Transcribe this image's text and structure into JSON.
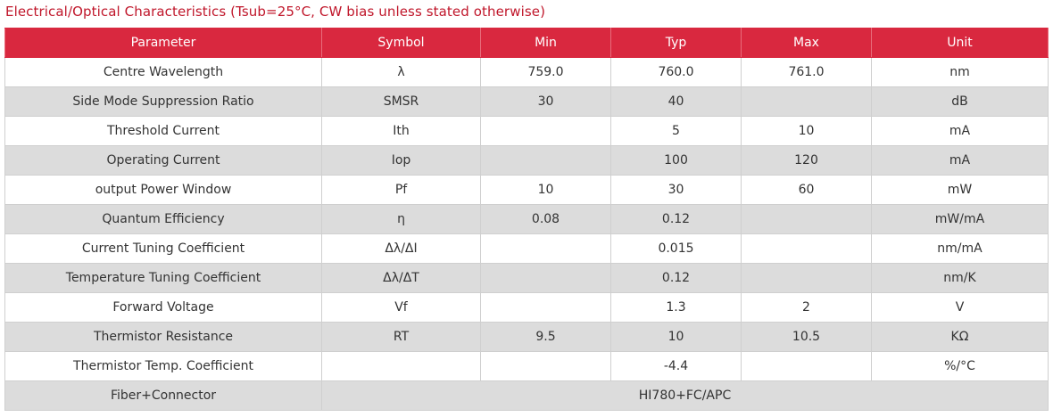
{
  "title": "Electrical/Optical Characteristics (Tsub=25°C, CW bias unless stated otherwise)",
  "columns": [
    "Parameter",
    "Symbol",
    "Min",
    "Typ",
    "Max",
    "Unit"
  ],
  "rows": [
    {
      "parameter": "Centre Wavelength",
      "symbol": "λ",
      "min": "759.0",
      "typ": "760.0",
      "max": "761.0",
      "unit": "nm"
    },
    {
      "parameter": "Side Mode Suppression Ratio",
      "symbol": "SMSR",
      "min": "30",
      "typ": "40",
      "max": "",
      "unit": "dB"
    },
    {
      "parameter": "Threshold Current",
      "symbol": "Ith",
      "min": "",
      "typ": "5",
      "max": "10",
      "unit": "mA"
    },
    {
      "parameter": "Operating Current",
      "symbol": "Iop",
      "min": "",
      "typ": "100",
      "max": "120",
      "unit": "mA"
    },
    {
      "parameter": "output Power Window",
      "symbol": "Pf",
      "min": "10",
      "typ": "30",
      "max": "60",
      "unit": "mW"
    },
    {
      "parameter": "Quantum Efficiency",
      "symbol": "η",
      "min": "0.08",
      "typ": "0.12",
      "max": "",
      "unit": "mW/mA"
    },
    {
      "parameter": "Current Tuning Coefficient",
      "symbol": "Δλ/ΔI",
      "min": "",
      "typ": "0.015",
      "max": "",
      "unit": "nm/mA"
    },
    {
      "parameter": "Temperature Tuning Coefficient",
      "symbol": "Δλ/ΔT",
      "min": "",
      "typ": "0.12",
      "max": "",
      "unit": "nm/K"
    },
    {
      "parameter": "Forward Voltage",
      "symbol": "Vf",
      "min": "",
      "typ": "1.3",
      "max": "2",
      "unit": "V"
    },
    {
      "parameter": "Thermistor Resistance",
      "symbol": "RT",
      "min": "9.5",
      "typ": "10",
      "max": "10.5",
      "unit": "KΩ"
    },
    {
      "parameter": "Thermistor Temp. Coefficient",
      "symbol": "",
      "min": "",
      "typ": "-4.4",
      "max": "",
      "unit": "%/°C"
    }
  ],
  "fiber_row": {
    "parameter": "Fiber+Connector",
    "value": "HI780+FC/APC"
  }
}
